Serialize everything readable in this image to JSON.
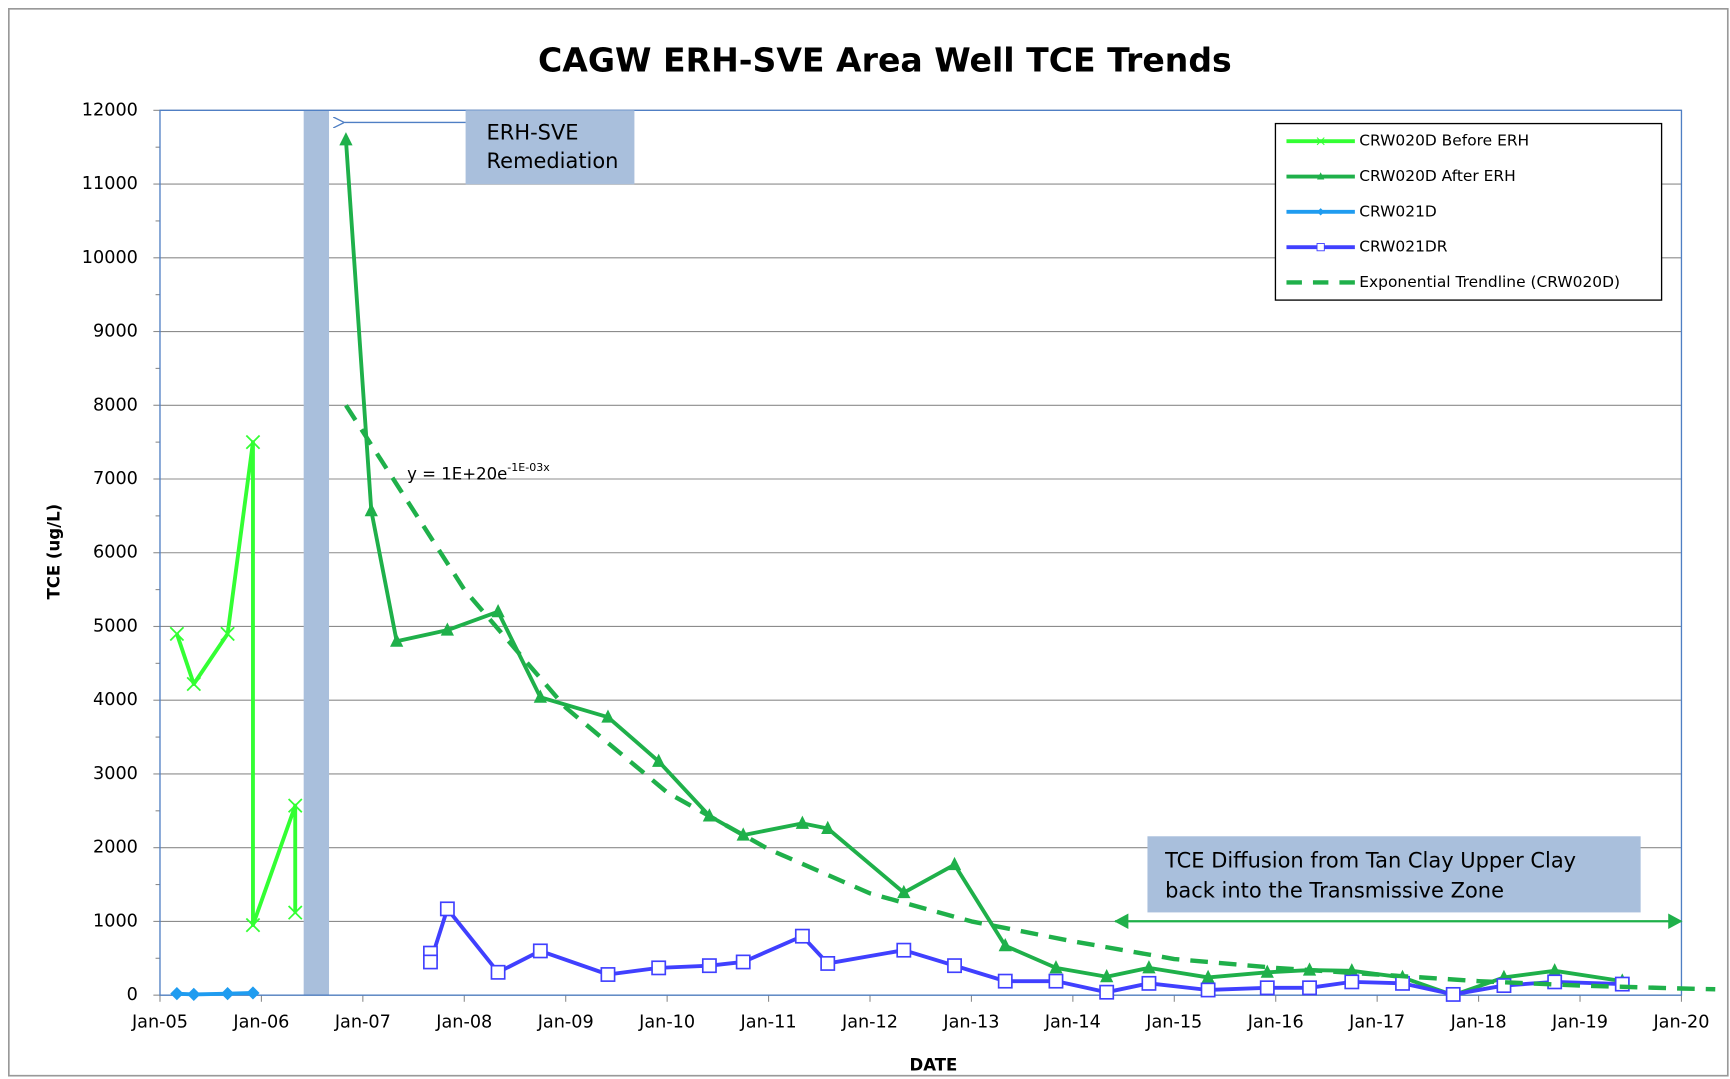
{
  "chart_data": {
    "type": "line",
    "title": "CAGW ERH-SVE Area Well TCE Trends",
    "x_label": "DATE",
    "y_label": "TCE  (ug/L)",
    "xlim": [
      "2005-01",
      "2020-01"
    ],
    "xticks": [
      {
        "value": "2005-01",
        "label": "Jan-05"
      },
      {
        "value": "2006-01",
        "label": "Jan-06"
      },
      {
        "value": "2007-01",
        "label": "Jan-07"
      },
      {
        "value": "2008-01",
        "label": "Jan-08"
      },
      {
        "value": "2009-01",
        "label": "Jan-09"
      },
      {
        "value": "2010-01",
        "label": "Jan-10"
      },
      {
        "value": "2011-01",
        "label": "Jan-11"
      },
      {
        "value": "2012-01",
        "label": "Jan-12"
      },
      {
        "value": "2013-01",
        "label": "Jan-13"
      },
      {
        "value": "2014-01",
        "label": "Jan-14"
      },
      {
        "value": "2015-01",
        "label": "Jan-15"
      },
      {
        "value": "2016-01",
        "label": "Jan-16"
      },
      {
        "value": "2017-01",
        "label": "Jan-17"
      },
      {
        "value": "2018-01",
        "label": "Jan-18"
      },
      {
        "value": "2019-01",
        "label": "Jan-19"
      },
      {
        "value": "2020-01",
        "label": "Jan-20"
      }
    ],
    "ylim": [
      0,
      12000
    ],
    "yticks": [
      0,
      1000,
      2000,
      3000,
      4000,
      5000,
      6000,
      7000,
      8000,
      9000,
      10000,
      11000,
      12000
    ],
    "grid": true,
    "legend": "top-right",
    "series": [
      {
        "name": "CRW020D Before ERH",
        "color": "#33ff33",
        "marker": "x",
        "dashed": false,
        "x": [
          "2005-03",
          "2005-05",
          "2005-09",
          "2005-12",
          "2005-12",
          "2006-05",
          "2006-05"
        ],
        "values": [
          4900,
          4220,
          4900,
          7500,
          950,
          2570,
          1120
        ]
      },
      {
        "name": "CRW020D After ERH",
        "color": "#1fb04a",
        "marker": "triangle",
        "dashed": false,
        "x": [
          "2006-11",
          "2007-02",
          "2007-05",
          "2007-11",
          "2008-05",
          "2008-10",
          "2009-06",
          "2009-12",
          "2010-06",
          "2010-10",
          "2011-05",
          "2011-08",
          "2012-05",
          "2012-11",
          "2013-05",
          "2013-11",
          "2014-05",
          "2014-10",
          "2015-05",
          "2015-12",
          "2016-05",
          "2016-10",
          "2017-04",
          "2017-10",
          "2018-04",
          "2018-10",
          "2019-06"
        ],
        "values": [
          11600,
          6570,
          4800,
          4950,
          5200,
          4040,
          3770,
          3170,
          2430,
          2170,
          2330,
          2260,
          1390,
          1770,
          670,
          370,
          250,
          370,
          240,
          310,
          340,
          330,
          240,
          0,
          240,
          330,
          190
        ]
      },
      {
        "name": "CRW021D",
        "color": "#1f9cf0",
        "marker": "diamond",
        "dashed": false,
        "x": [
          "2005-03",
          "2005-05",
          "2005-09",
          "2005-12"
        ],
        "values": [
          20,
          10,
          20,
          30
        ]
      },
      {
        "name": "CRW021DR",
        "color": "#4040ff",
        "marker": "square",
        "dashed": false,
        "x": [
          "2007-09",
          "2007-09",
          "2007-11",
          "2008-05",
          "2008-10",
          "2009-06",
          "2009-12",
          "2010-06",
          "2010-10",
          "2011-05",
          "2011-08",
          "2012-05",
          "2012-11",
          "2013-05",
          "2013-11",
          "2014-05",
          "2014-10",
          "2015-05",
          "2015-12",
          "2016-05",
          "2016-10",
          "2017-04",
          "2017-10",
          "2018-04",
          "2018-10",
          "2019-06"
        ],
        "values": [
          570,
          450,
          1170,
          310,
          600,
          280,
          370,
          400,
          450,
          800,
          430,
          610,
          400,
          190,
          190,
          40,
          160,
          70,
          100,
          100,
          180,
          160,
          10,
          130,
          180,
          150
        ]
      },
      {
        "name": "Exponential Trendline (CRW020D)",
        "color": "#1fb04a",
        "marker": "none",
        "dashed": true,
        "x": [
          "2006-11",
          "2008-01",
          "2009-01",
          "2010-01",
          "2011-01",
          "2012-01",
          "2013-01",
          "2014-01",
          "2015-01",
          "2016-01",
          "2017-01",
          "2018-01",
          "2019-01",
          "2020-01",
          "2020-05"
        ],
        "values": [
          8000,
          5500,
          3900,
          2750,
          1980,
          1380,
          1000,
          730,
          490,
          370,
          280,
          190,
          130,
          90,
          80
        ]
      }
    ],
    "remediation_period": [
      "2006-06",
      "2006-09"
    ],
    "remediation_label": [
      "ERH-SVE",
      "Remediation"
    ],
    "equation": "y = 1E+20e",
    "equation_exponent": "-1E-03x",
    "diffusion_label": [
      "TCE Diffusion from Tan Clay Upper Clay",
      "back into the Transmissive Zone"
    ],
    "diffusion_range": [
      "2014-06",
      "2020-01"
    ]
  }
}
